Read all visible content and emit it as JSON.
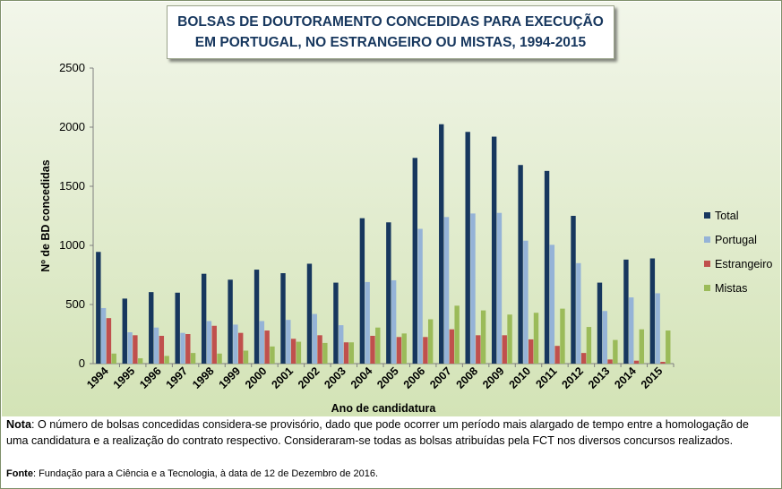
{
  "chart_data": {
    "type": "bar",
    "title_line1": "BOLSAS DE DOUTORAMENTO CONCEDIDAS PARA EXECUÇÃO",
    "title_line2": "EM PORTUGAL, NO ESTRANGEIRO OU MISTAS, 1994-2015",
    "xlabel": "Ano de candidatura",
    "ylabel": "Nº de BD concedidas",
    "ylim": [
      0,
      2500
    ],
    "yticks": [
      "0",
      "500",
      "1000",
      "1500",
      "2000",
      "2500"
    ],
    "grid": false,
    "legend_position": "right",
    "categories": [
      "1994",
      "1995",
      "1996",
      "1997",
      "1998",
      "1999",
      "2000",
      "2001",
      "2002",
      "2003",
      "2004",
      "2005",
      "2006",
      "2007",
      "2008",
      "2009",
      "2010",
      "2011",
      "2012",
      "2013",
      "2014",
      "2015"
    ],
    "series": [
      {
        "name": "Total",
        "color": "#17375e",
        "values": [
          945,
          550,
          605,
          600,
          760,
          710,
          795,
          765,
          845,
          685,
          1230,
          1195,
          1740,
          2025,
          1960,
          1920,
          1680,
          1630,
          1250,
          685,
          880,
          890
        ]
      },
      {
        "name": "Portugal",
        "color": "#95b3d7",
        "values": [
          470,
          265,
          305,
          260,
          360,
          330,
          360,
          370,
          420,
          325,
          690,
          705,
          1140,
          1240,
          1270,
          1275,
          1040,
          1005,
          850,
          445,
          560,
          595
        ]
      },
      {
        "name": "Estrangeiro",
        "color": "#c0504d",
        "values": [
          385,
          240,
          235,
          250,
          320,
          260,
          280,
          210,
          240,
          180,
          235,
          225,
          225,
          290,
          240,
          240,
          205,
          150,
          90,
          35,
          25,
          15
        ]
      },
      {
        "name": "Mistas",
        "color": "#9bbb59",
        "values": [
          85,
          45,
          65,
          90,
          85,
          110,
          145,
          185,
          175,
          180,
          305,
          255,
          375,
          490,
          450,
          415,
          430,
          465,
          310,
          200,
          290,
          280
        ]
      }
    ]
  },
  "notes": {
    "nota_label": "Nota",
    "nota_text": ": O número de bolsas concedidas considera-se provisório, dado que pode ocorrer um período mais alargado de tempo entre a homologação de uma candidatura e a realização do contrato respectivo. Consideraram-se todas as bolsas atribuídas pela FCT nos diversos concursos realizados.",
    "fonte_label": "Fonte",
    "fonte_text": ": Fundação para a Ciência e a Tecnologia, à data de 12 de Dezembro de 2016."
  }
}
